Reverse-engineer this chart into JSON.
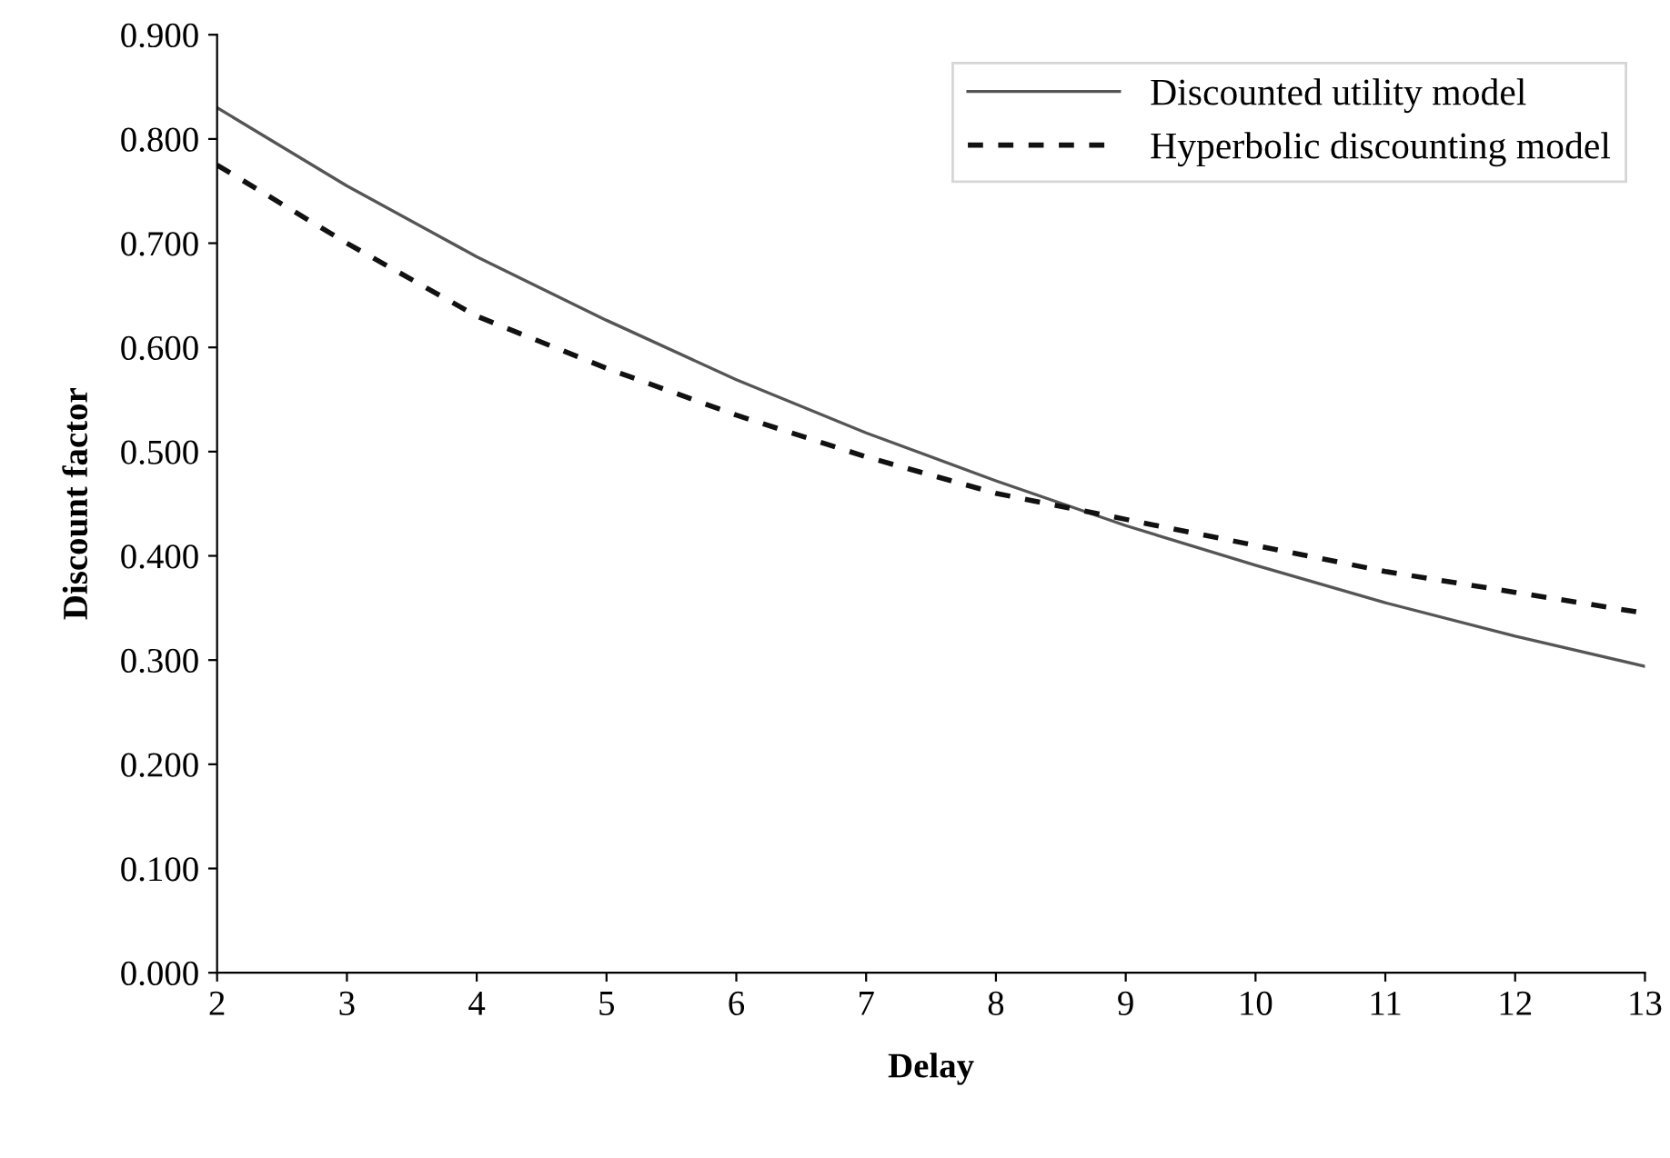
{
  "chart_data": {
    "type": "line",
    "xlabel": "Delay",
    "ylabel": "Discount factor",
    "x": [
      2,
      3,
      4,
      5,
      6,
      7,
      8,
      9,
      10,
      11,
      12,
      13
    ],
    "series": [
      {
        "name": "Discounted utility model",
        "color": "#555555",
        "line_style": "solid",
        "values": [
          0.83,
          0.755,
          0.687,
          0.626,
          0.569,
          0.518,
          0.472,
          0.429,
          0.391,
          0.355,
          0.323,
          0.294
        ]
      },
      {
        "name": "Hyperbolic discounting model",
        "color": "#111111",
        "line_style": "dashed",
        "values": [
          0.775,
          0.7,
          0.63,
          0.58,
          0.535,
          0.495,
          0.46,
          0.435,
          0.41,
          0.385,
          0.365,
          0.345
        ]
      }
    ],
    "xlim": [
      2,
      13
    ],
    "xticks": [
      2,
      3,
      4,
      5,
      6,
      7,
      8,
      9,
      10,
      11,
      12,
      13
    ],
    "ylim": [
      0,
      0.9
    ],
    "yticks": [
      {
        "value": 0,
        "label": "0.000"
      },
      {
        "value": 0.1,
        "label": "0.100"
      },
      {
        "value": 0.2,
        "label": "0.200"
      },
      {
        "value": 0.3,
        "label": "0.300"
      },
      {
        "value": 0.4,
        "label": "0.400"
      },
      {
        "value": 0.5,
        "label": "0.500"
      },
      {
        "value": 0.6,
        "label": "0.600"
      },
      {
        "value": 0.7,
        "label": "0.700"
      },
      {
        "value": 0.8,
        "label": "0.800"
      },
      {
        "value": 0.9,
        "label": "0.900"
      }
    ],
    "legend": "top right",
    "grid": false,
    "marker": "none"
  }
}
